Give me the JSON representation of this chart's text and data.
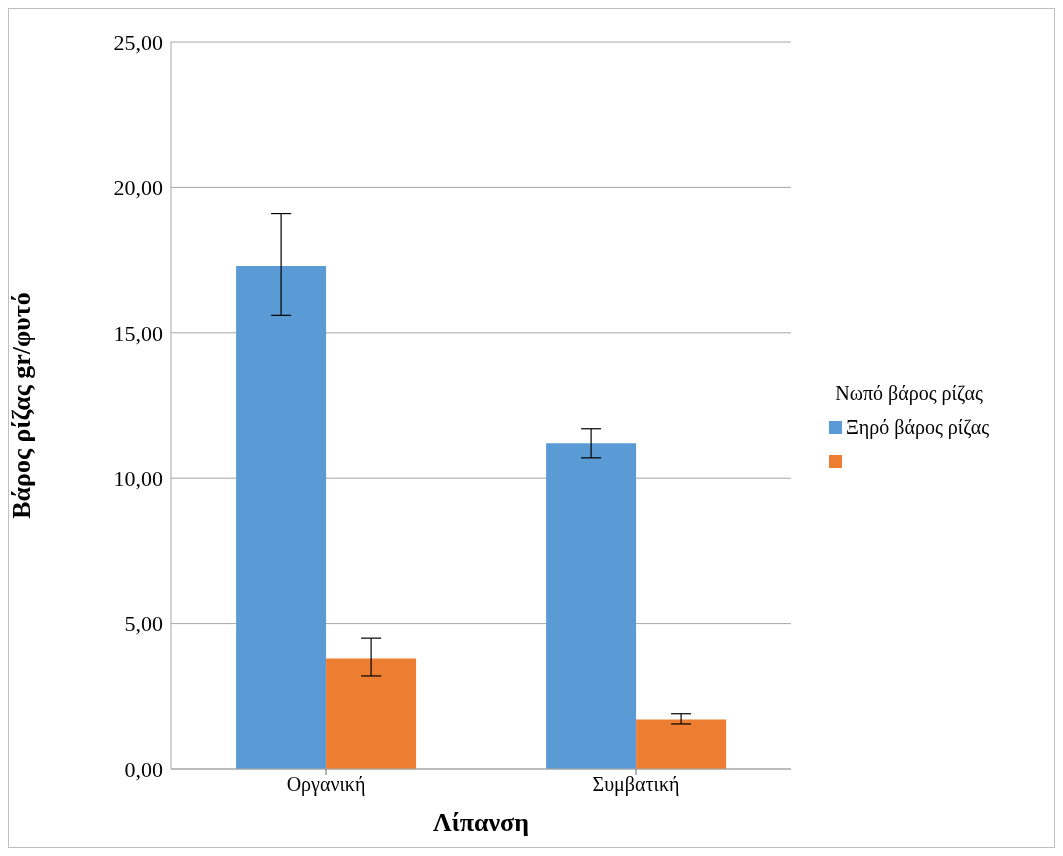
{
  "chart_data": {
    "type": "bar",
    "ylabel": "Βάρος ρίζας gr/φυτό",
    "xlabel": "Λίπανση",
    "categories": [
      "Οργανική",
      "Συμβατική"
    ],
    "series": [
      {
        "name": "Ξηρό βάρος ρίζας",
        "color": "#5b9bd5",
        "values": [
          17.3,
          11.2
        ],
        "errors": [
          [
            15.6,
            19.1
          ],
          [
            10.7,
            11.7
          ]
        ]
      },
      {
        "color": "#ed7d31",
        "values": [
          3.8,
          1.7
        ],
        "errors": [
          [
            3.2,
            4.5
          ],
          [
            1.55,
            1.9
          ]
        ]
      }
    ],
    "legend_title": "Νωπό βάρος ρίζας",
    "legend": "right",
    "ylim": [
      0,
      25
    ],
    "yticks": [
      {
        "value": 0,
        "label": "0,00"
      },
      {
        "value": 5,
        "label": "5,00"
      },
      {
        "value": 10,
        "label": "10,00"
      },
      {
        "value": 15,
        "label": "15,00"
      },
      {
        "value": 20,
        "label": "20,00"
      },
      {
        "value": 25,
        "label": "25,00"
      }
    ],
    "grid": "y"
  }
}
